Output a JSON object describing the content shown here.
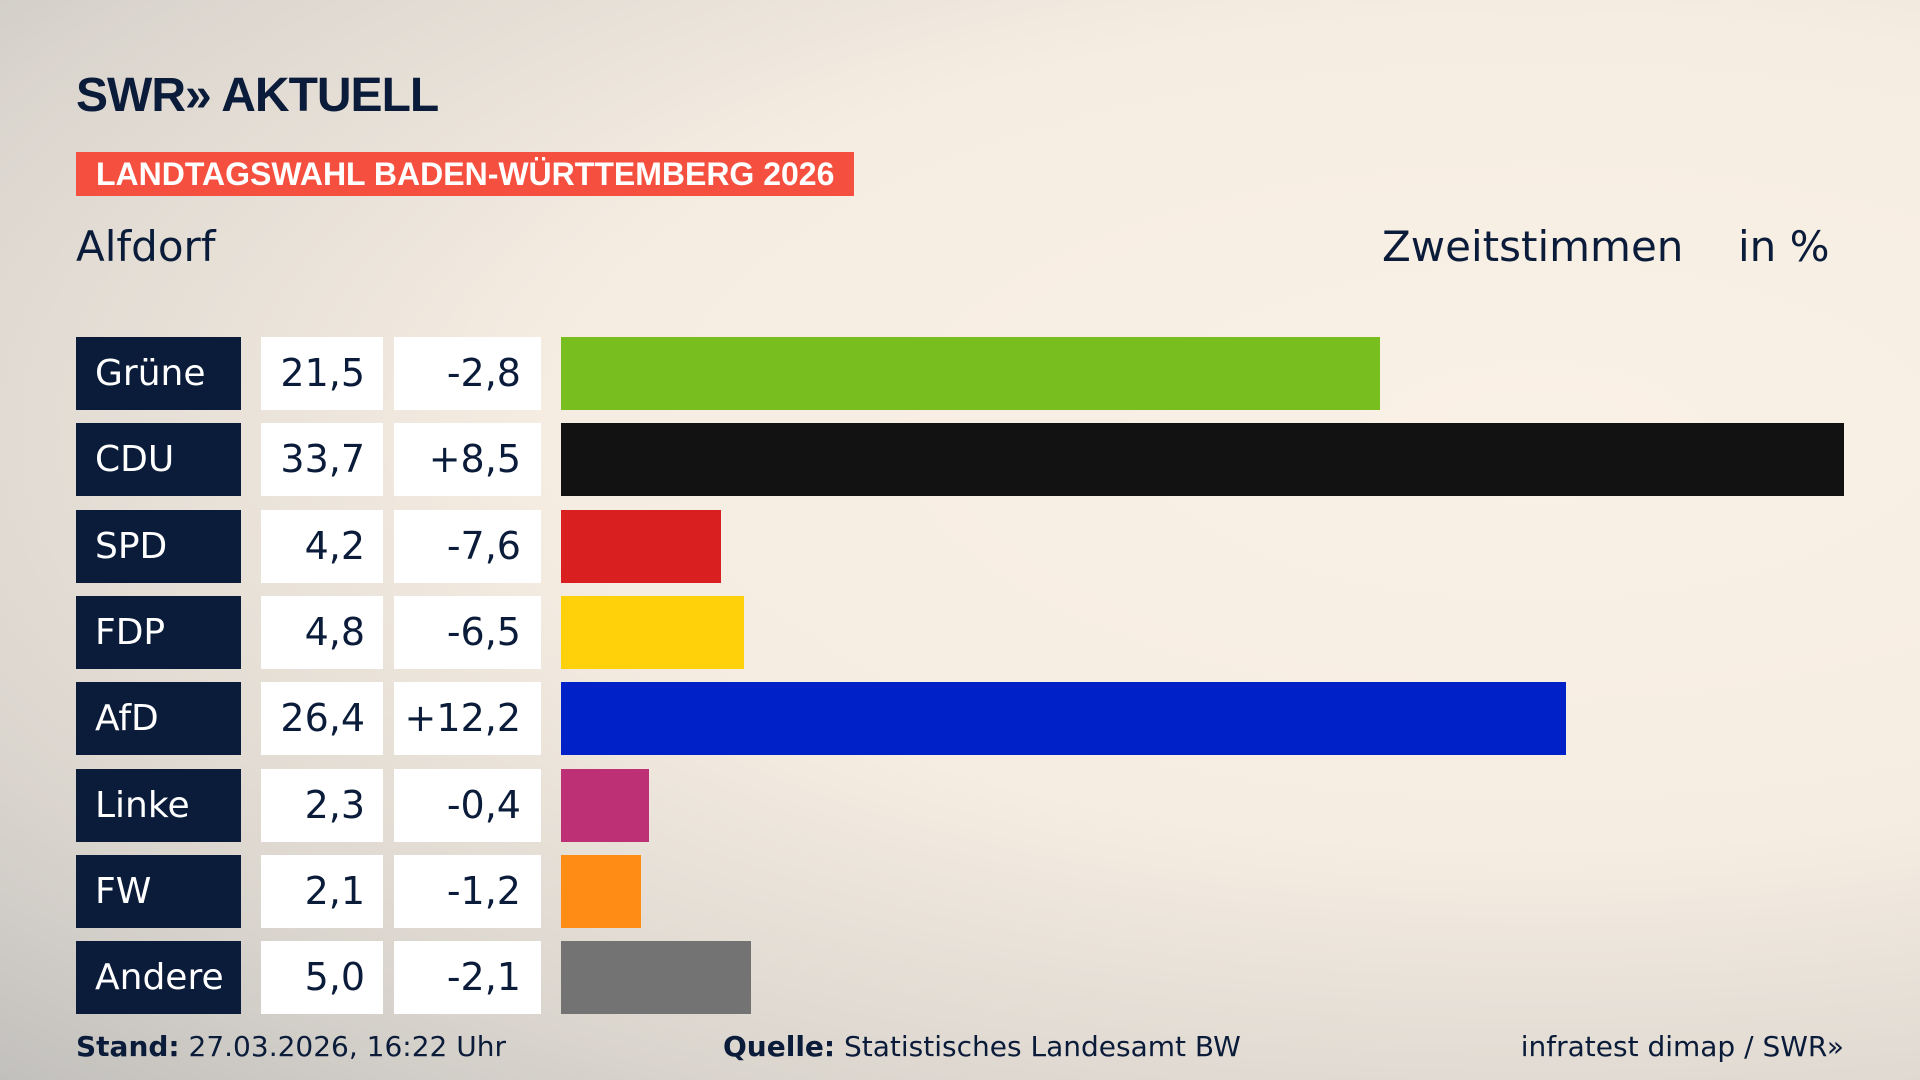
{
  "header": {
    "logo": "SWR» AKTUELL",
    "banner": "LANDTAGSWAHL BADEN-WÜRTTEMBERG 2026",
    "place": "Alfdorf",
    "metric": "Zweitstimmen",
    "unit": "in %"
  },
  "chart_data": {
    "type": "bar",
    "orientation": "horizontal",
    "categories": [
      "Grüne",
      "CDU",
      "SPD",
      "FDP",
      "AfD",
      "Linke",
      "FW",
      "Andere"
    ],
    "values": [
      21.5,
      33.7,
      4.2,
      4.8,
      26.4,
      2.3,
      2.1,
      5.0
    ],
    "value_labels": [
      "21,5",
      "33,7",
      "4,2",
      "4,8",
      "26,4",
      "2,3",
      "2,1",
      "5,0"
    ],
    "change_labels": [
      "-2,8",
      "+8,5",
      "-7,6",
      "-6,5",
      "+12,2",
      "-0,4",
      "-1,2",
      "-2,1"
    ],
    "changes": [
      -2.8,
      8.5,
      -7.6,
      -6.5,
      12.2,
      -0.4,
      -1.2,
      -2.1
    ],
    "colors": [
      "#78be1e",
      "#121212",
      "#d91f1f",
      "#ffd10a",
      "#0021c8",
      "#be3075",
      "#ff8c14",
      "#737373"
    ],
    "grid": false
  },
  "footer": {
    "stand_label": "Stand:",
    "stand": "27.03.2026, 16:22 Uhr",
    "source_label": "Quelle:",
    "source": "Statistisches Landesamt BW",
    "credit": "infratest dimap / SWR»"
  }
}
